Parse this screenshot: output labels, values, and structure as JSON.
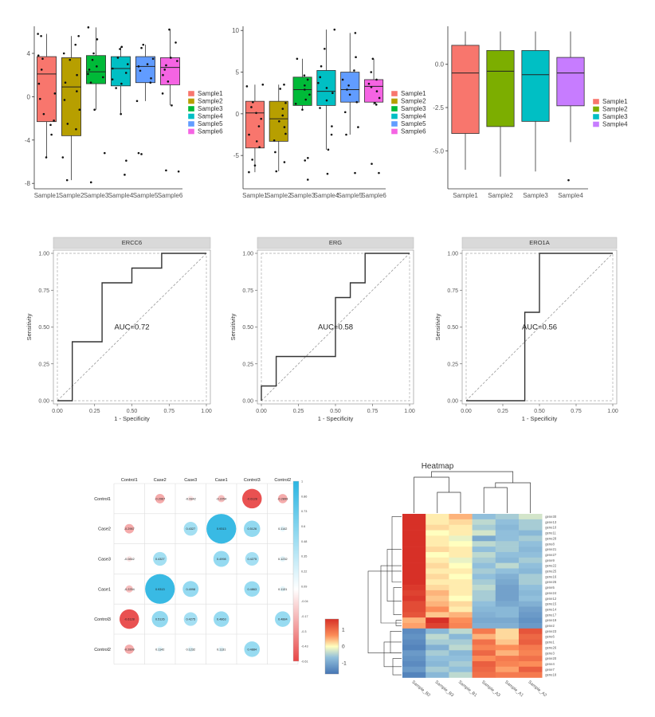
{
  "chart_data": [
    {
      "type": "box",
      "title": "",
      "ylim": [
        -8.5,
        6.5
      ],
      "yticks": [
        -8,
        -4,
        0,
        4
      ],
      "categories": [
        "Sample1",
        "Sample2",
        "Sample3",
        "Sample4",
        "Sample5",
        "Sample6"
      ],
      "legend": [
        "Sample1",
        "Sample2",
        "Sample3",
        "Sample4",
        "Sample5",
        "Sample6"
      ],
      "colors": [
        "#f8766d",
        "#b79f00",
        "#00ba38",
        "#00bfc4",
        "#619cff",
        "#f564e3"
      ],
      "boxes": [
        {
          "q1": -2.3,
          "median": 2.1,
          "q3": 3.7,
          "wlo": -5.6,
          "whi": 5.8,
          "points": [
            5.8,
            5.6,
            3.8,
            3.5,
            2.5,
            1.2,
            0.3,
            -0.2,
            -1.6,
            -2.2,
            -2.6,
            -3.5,
            -5.6
          ]
        },
        {
          "q1": -3.6,
          "median": 0.9,
          "q3": 3.6,
          "wlo": -7.7,
          "whi": 5.6,
          "points": [
            5.6,
            4.8,
            4.0,
            3.4,
            2.0,
            1.3,
            0.5,
            -0.3,
            -1.2,
            -2.5,
            -3.0,
            -5.6,
            -7.7
          ]
        },
        {
          "q1": 1.2,
          "median": 2.3,
          "q3": 3.8,
          "wlo": -1.2,
          "whi": 6.4,
          "points": [
            6.4,
            5.3,
            4.0,
            3.4,
            2.8,
            2.5,
            2.1,
            1.8,
            1.3,
            -1.2,
            -5.2,
            -7.9
          ]
        },
        {
          "q1": 1.0,
          "median": 2.6,
          "q3": 3.7,
          "wlo": -1.6,
          "whi": 4.6,
          "points": [
            4.6,
            4.4,
            3.6,
            3.0,
            2.6,
            2.2,
            1.6,
            1.2,
            0.8,
            -1.6,
            -5.9,
            -7.2
          ]
        },
        {
          "q1": 1.3,
          "median": 2.8,
          "q3": 3.7,
          "wlo": -0.4,
          "whi": 4.8,
          "points": [
            4.8,
            4.5,
            3.5,
            3.0,
            2.8,
            2.4,
            1.7,
            1.3,
            -0.4,
            -5.2,
            -5.3
          ]
        },
        {
          "q1": 1.1,
          "median": 2.7,
          "q3": 3.6,
          "wlo": -0.8,
          "whi": 6.2,
          "points": [
            6.2,
            5.0,
            3.6,
            3.3,
            2.9,
            2.5,
            2.0,
            1.4,
            0.3,
            -0.8,
            -6.8,
            -6.9
          ]
        }
      ]
    },
    {
      "type": "box",
      "title": "",
      "ylim": [
        -9,
        10.5
      ],
      "yticks": [
        -5,
        0,
        5,
        10
      ],
      "categories": [
        "Sample1",
        "Sample2",
        "Sample3",
        "Sample4",
        "Sample5",
        "Sample6"
      ],
      "legend": [
        "Sample1",
        "Sample2",
        "Sample3",
        "Sample4",
        "Sample5",
        "Sample6"
      ],
      "colors": [
        "#f8766d",
        "#b79f00",
        "#00ba38",
        "#00bfc4",
        "#619cff",
        "#f564e3"
      ],
      "boxes": [
        {
          "q1": -4.1,
          "median": 0.1,
          "q3": 1.5,
          "wlo": -7.0,
          "whi": 3.5,
          "points": [
            3.5,
            3.3,
            1.4,
            0.8,
            0.1,
            -0.6,
            -1.5,
            -2.5,
            -3.3,
            -4.0,
            -5.5,
            -6.2,
            -7.0
          ]
        },
        {
          "q1": -3.3,
          "median": -0.6,
          "q3": 1.5,
          "wlo": -6.9,
          "whi": 3.5,
          "points": [
            3.5,
            3.0,
            1.3,
            0.6,
            -0.2,
            -0.9,
            -1.6,
            -2.4,
            -3.2,
            -4.6,
            -5.8,
            -6.9
          ]
        },
        {
          "q1": 1.0,
          "median": 2.9,
          "q3": 4.4,
          "wlo": 0.5,
          "whi": 6.6,
          "points": [
            6.6,
            4.6,
            4.1,
            3.4,
            2.9,
            2.3,
            1.7,
            1.2,
            0.5,
            -5.3,
            -5.6,
            -7.9
          ]
        },
        {
          "q1": 1.0,
          "median": 2.7,
          "q3": 5.2,
          "wlo": -4.3,
          "whi": 10.1,
          "points": [
            10.1,
            7.8,
            5.7,
            4.4,
            3.7,
            3.1,
            2.5,
            1.6,
            0.7,
            -1.5,
            -2.5,
            -4.3,
            -7.2
          ]
        },
        {
          "q1": 1.4,
          "median": 2.9,
          "q3": 5.0,
          "wlo": -2.5,
          "whi": 9.7,
          "points": [
            9.7,
            6.8,
            5.2,
            4.1,
            3.4,
            2.9,
            2.3,
            1.4,
            0.2,
            -1.6,
            -2.5,
            -7.1
          ]
        },
        {
          "q1": 1.4,
          "median": 3.3,
          "q3": 4.1,
          "wlo": 1.1,
          "whi": 6.6,
          "points": [
            6.6,
            5.0,
            4.1,
            3.6,
            3.2,
            2.7,
            1.9,
            1.3,
            1.1,
            -6.0,
            -7.1
          ]
        }
      ]
    },
    {
      "type": "box",
      "title": "",
      "ylim": [
        -7.2,
        2.2
      ],
      "yticks": [
        -5.0,
        -2.5,
        0.0
      ],
      "ytickLabels": [
        "-5.0",
        "-2.5",
        "0.0"
      ],
      "categories": [
        "Sample1",
        "Sample2",
        "Sample3",
        "Sample4"
      ],
      "legend": [
        "Sample1",
        "Sample2",
        "Sample3",
        "Sample4"
      ],
      "colors": [
        "#f8766d",
        "#7cae00",
        "#00bfc4",
        "#c77cff"
      ],
      "boxes": [
        {
          "q1": -4.0,
          "median": -0.5,
          "q3": 1.1,
          "wlo": -6.1,
          "whi": 1.9,
          "points": []
        },
        {
          "q1": -3.6,
          "median": -0.4,
          "q3": 0.8,
          "wlo": -6.5,
          "whi": 1.9,
          "points": []
        },
        {
          "q1": -3.3,
          "median": -0.6,
          "q3": 0.8,
          "wlo": -6.2,
          "whi": 1.9,
          "points": []
        },
        {
          "q1": -2.4,
          "median": -0.5,
          "q3": 0.4,
          "wlo": -4.5,
          "whi": 1.9,
          "points": [
            -6.7
          ]
        }
      ]
    },
    {
      "type": "roc",
      "title": "ERCC6",
      "xlabel": "1 - Specificity",
      "ylabel": "Sensitivity",
      "ticks": [
        "0.00",
        "0.25",
        "0.50",
        "0.75",
        "1.00"
      ],
      "annotation": "AUC=0.72",
      "curve": [
        [
          0,
          0
        ],
        [
          0.1,
          0
        ],
        [
          0.1,
          0.4
        ],
        [
          0.3,
          0.4
        ],
        [
          0.3,
          0.8
        ],
        [
          0.5,
          0.8
        ],
        [
          0.5,
          0.9
        ],
        [
          0.7,
          0.9
        ],
        [
          0.7,
          1.0
        ],
        [
          1.0,
          1.0
        ]
      ]
    },
    {
      "type": "roc",
      "title": "ERG",
      "xlabel": "1 - Specificity",
      "ylabel": "Sensitivity",
      "ticks": [
        "0.00",
        "0.25",
        "0.50",
        "0.75",
        "1.00"
      ],
      "annotation": "AUC=0.58",
      "curve": [
        [
          0,
          0
        ],
        [
          0,
          0.1
        ],
        [
          0.1,
          0.1
        ],
        [
          0.1,
          0.3
        ],
        [
          0.5,
          0.3
        ],
        [
          0.5,
          0.7
        ],
        [
          0.6,
          0.7
        ],
        [
          0.6,
          0.8
        ],
        [
          0.7,
          0.8
        ],
        [
          0.7,
          1.0
        ],
        [
          1.0,
          1.0
        ]
      ]
    },
    {
      "type": "roc",
      "title": "ERO1A",
      "xlabel": "1 - Specificity",
      "ylabel": "Sensitivity",
      "ticks": [
        "0.00",
        "0.25",
        "0.50",
        "0.75",
        "1.00"
      ],
      "annotation": "AUC=0.56",
      "curve": [
        [
          0,
          0
        ],
        [
          0.4,
          0
        ],
        [
          0.4,
          0.6
        ],
        [
          0.5,
          0.6
        ],
        [
          0.5,
          1.0
        ],
        [
          1.0,
          1.0
        ]
      ]
    },
    {
      "type": "correlation",
      "columns": [
        "Control1",
        "Case2",
        "Case3",
        "Case1",
        "Control3",
        "Control2"
      ],
      "rows": [
        "Control1",
        "Case2",
        "Case3",
        "Case1",
        "Control3",
        "Control2"
      ],
      "values": [
        [
          null,
          -0.2967,
          -0.0842,
          -0.2254,
          -0.6128,
          -0.2899
        ],
        [
          -0.2967,
          null,
          0.4327,
          0.9313,
          0.5126,
          0.1142
        ],
        [
          -0.0842,
          0.4327,
          null,
          0.4998,
          0.4275,
          0.1232
        ],
        [
          -0.2254,
          0.9313,
          0.4998,
          null,
          0.4863,
          0.1131
        ],
        [
          -0.6128,
          0.5126,
          0.4275,
          0.4863,
          null,
          0.4884
        ],
        [
          -0.2899,
          0.1142,
          0.1232,
          0.1131,
          0.4884,
          null
        ]
      ],
      "colorbar_ticks": [
        "1",
        "0.86",
        "0.73",
        "0.6",
        "0.48",
        "0.35",
        "0.22",
        "0.09",
        "-0.04",
        "-0.17",
        "-0.3",
        "-0.43",
        "-0.61"
      ]
    },
    {
      "type": "heatmap",
      "title": "Heatmap",
      "columns": [
        "Sample_B2",
        "Sample_B3",
        "Sample_B1",
        "Sample_A3",
        "Sample_A1",
        "Sample_A2"
      ],
      "rows": [
        "gene30",
        "gene13",
        "gene10",
        "gene11",
        "gene28",
        "gene8",
        "gene21",
        "gene27",
        "gene9",
        "gene22",
        "gene25",
        "gene16",
        "gene26",
        "gene5",
        "gene24",
        "gene12",
        "gene15",
        "gene14",
        "gene17",
        "gene19",
        "gene2",
        "gene23",
        "gene6",
        "gene1",
        "gene26",
        "gene3",
        "gene20",
        "gene4",
        "gene7",
        "gene18"
      ],
      "legend_ticks": [
        "1",
        "0",
        "-1"
      ],
      "values": [
        [
          1.6,
          0.1,
          0.4,
          -0.5,
          -0.4,
          -0.2
        ],
        [
          1.6,
          0.1,
          0.2,
          -0.3,
          -0.5,
          -0.4
        ],
        [
          1.6,
          0.2,
          0.1,
          -0.4,
          -0.6,
          -0.4
        ],
        [
          1.6,
          0.0,
          0.1,
          -0.2,
          -0.5,
          -0.6
        ],
        [
          1.6,
          0.1,
          -0.1,
          -0.8,
          -0.5,
          -0.4
        ],
        [
          1.6,
          0.1,
          0.0,
          -0.3,
          -0.4,
          -0.5
        ],
        [
          1.6,
          0.2,
          0.1,
          -0.5,
          -0.4,
          -0.6
        ],
        [
          1.6,
          0.0,
          0.1,
          -0.3,
          -0.5,
          -0.5
        ],
        [
          1.6,
          0.1,
          -0.1,
          -0.4,
          -0.6,
          -0.4
        ],
        [
          1.6,
          0.2,
          0.0,
          -0.5,
          -0.3,
          -0.5
        ],
        [
          1.6,
          0.1,
          0.1,
          -0.4,
          -0.5,
          -0.6
        ],
        [
          1.6,
          0.2,
          0.0,
          -0.5,
          -0.7,
          -0.4
        ],
        [
          1.6,
          0.1,
          0.1,
          -0.4,
          -0.8,
          -0.4
        ],
        [
          1.5,
          0.2,
          0.1,
          -0.3,
          -0.9,
          -0.5
        ],
        [
          1.4,
          0.4,
          0.1,
          -0.4,
          -0.9,
          -0.6
        ],
        [
          1.5,
          0.3,
          0.0,
          -0.4,
          -0.9,
          -0.5
        ],
        [
          1.3,
          0.4,
          0.2,
          -0.5,
          -0.8,
          -0.7
        ],
        [
          1.3,
          0.6,
          0.1,
          -0.6,
          -0.6,
          -0.9
        ],
        [
          1.2,
          0.3,
          0.4,
          -0.7,
          -0.6,
          -1.0
        ],
        [
          0.4,
          1.6,
          0.6,
          -0.8,
          -0.8,
          -1.1
        ],
        [
          0.5,
          1.4,
          0.7,
          -0.7,
          -0.7,
          -1.0
        ],
        [
          -1.2,
          -0.6,
          -0.3,
          0.8,
          0.2,
          1.2
        ],
        [
          -1.1,
          -0.3,
          -0.6,
          0.4,
          0.2,
          1.0
        ],
        [
          -1.2,
          -0.4,
          -0.4,
          0.9,
          0.3,
          1.1
        ],
        [
          -1.3,
          -0.7,
          -0.3,
          0.7,
          0.6,
          0.8
        ],
        [
          -1.0,
          -0.4,
          -0.6,
          1.0,
          0.4,
          0.7
        ],
        [
          -1.1,
          -0.5,
          -0.5,
          0.6,
          0.8,
          0.9
        ],
        [
          -1.2,
          -0.6,
          -0.4,
          1.1,
          0.7,
          0.6
        ],
        [
          -1.0,
          -0.4,
          -0.5,
          1.0,
          0.5,
          1.1
        ],
        [
          -1.3,
          -0.6,
          -0.3,
          0.9,
          0.8,
          0.8
        ]
      ]
    }
  ]
}
